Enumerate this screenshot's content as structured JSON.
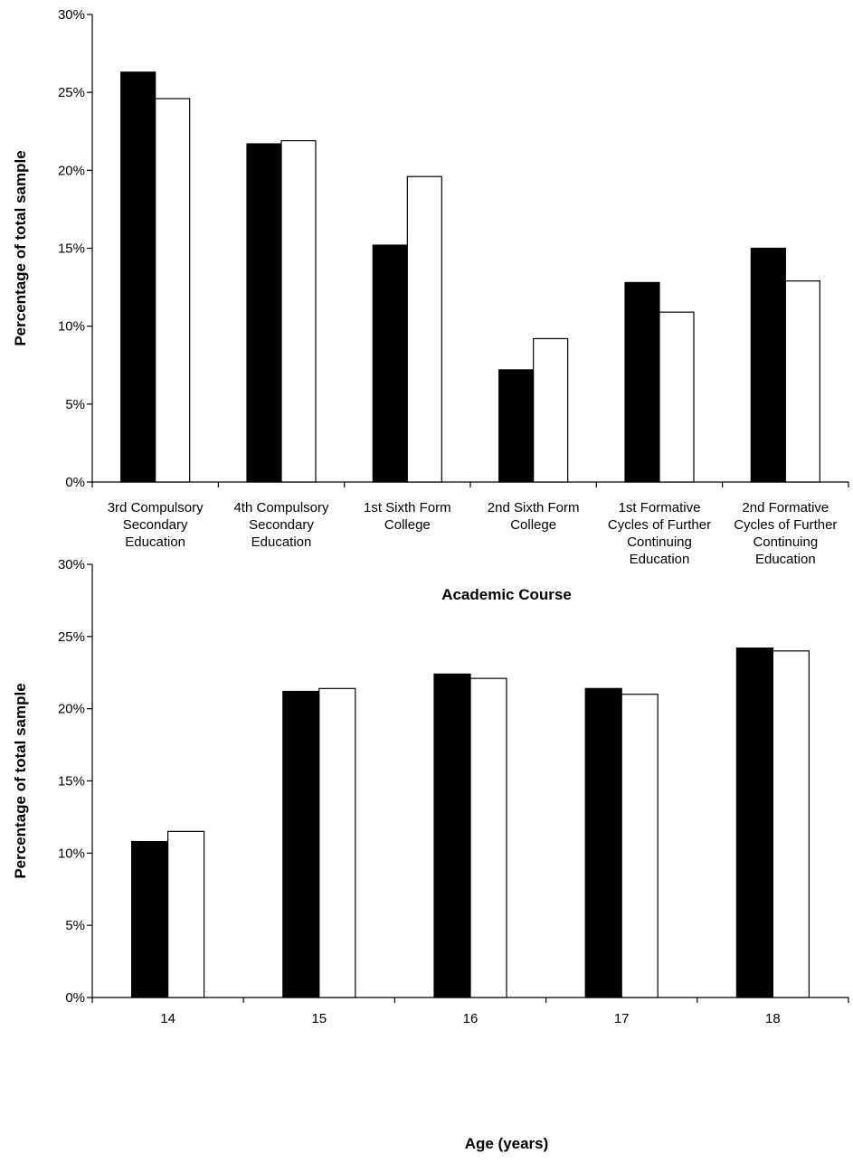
{
  "chart_data": [
    {
      "type": "bar",
      "categories": [
        [
          "3rd Compulsory",
          "Secondary",
          "Education"
        ],
        [
          "4th Compulsory",
          "Secondary",
          "Education"
        ],
        [
          "1st Sixth Form",
          "College"
        ],
        [
          "2nd Sixth Form",
          "College"
        ],
        [
          "1st Formative",
          "Cycles of Further",
          "Continuing",
          "Education"
        ],
        [
          "2nd Formative",
          "Cycles of Further",
          "Continuing",
          "Education"
        ]
      ],
      "series": [
        {
          "values": [
            26.3,
            21.7,
            15.2,
            7.2,
            12.8,
            15.0
          ],
          "color": "#000000"
        },
        {
          "values": [
            24.6,
            21.9,
            19.6,
            9.2,
            10.9,
            12.9
          ],
          "color": "#ffffff"
        }
      ],
      "xlabel": "Academic Course",
      "ylabel": "Percentage of total sample",
      "ylim": [
        0,
        30
      ],
      "yticks": [
        "0%",
        "5%",
        "10%",
        "15%",
        "20%",
        "25%",
        "30%"
      ],
      "grid": false,
      "legend": "none"
    },
    {
      "type": "bar",
      "categories": [
        [
          "14"
        ],
        [
          "15"
        ],
        [
          "16"
        ],
        [
          "17"
        ],
        [
          "18"
        ]
      ],
      "series": [
        {
          "values": [
            10.8,
            21.2,
            22.4,
            21.4,
            24.2
          ],
          "color": "#000000"
        },
        {
          "values": [
            11.5,
            21.4,
            22.1,
            21.0,
            24.0
          ],
          "color": "#ffffff"
        }
      ],
      "xlabel": "Age (years)",
      "ylabel": "Percentage of total sample",
      "ylim": [
        0,
        30
      ],
      "yticks": [
        "0%",
        "5%",
        "10%",
        "15%",
        "20%",
        "25%",
        "30%"
      ],
      "grid": false,
      "legend": "none"
    }
  ]
}
